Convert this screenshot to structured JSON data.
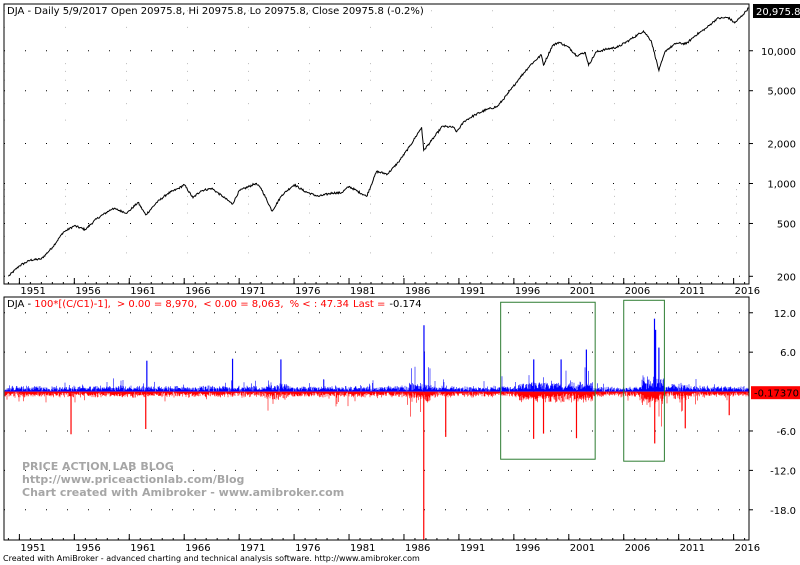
{
  "top_title": "DJA - Daily 5/9/2017 Open 20975.8, Hi 20975.8, Lo 20975.8, Close 20975.8 (-0.2%)",
  "last_price_label": "20,975.8",
  "bottom_title": {
    "prefix": "DJA - ",
    "formula": "100*[(C/C1)-1],",
    "pos_stat": "> 0.00 = 8,970,",
    "neg_stat": "< 0.00 = 8,063,",
    "pct_stat": "% < : 47.34",
    "last_label": "Last =",
    "last_value": "-0.174"
  },
  "last_change_badge": "-0.17370",
  "watermark": [
    "PRICE ACTION LAB BLOG",
    "http://www.priceactionlab.com/Blog",
    "Chart created with Amibroker - www.amibroker.com"
  ],
  "footer": "Created with AmiBroker - advanced charting and technical analysis software. http://www.amibroker.com",
  "colors": {
    "price_line": "#000000",
    "positive_bar": "#0000ff",
    "negative_bar": "#ff0000",
    "box": "#2e7d32",
    "badge_red": "#ff0000",
    "badge_black": "#000000"
  },
  "chart_data": [
    {
      "type": "line",
      "title": "DJA - Daily 5/9/2017 Open 20975.8, Hi 20975.8, Lo 20975.8, Close 20975.8 (-0.2%)",
      "y_scale": "log",
      "xlim": [
        1949.6,
        2017.4
      ],
      "ylim": [
        175,
        22500
      ],
      "x_tick_labels": [
        "1951",
        "1956",
        "1961",
        "1966",
        "1971",
        "1976",
        "1981",
        "1986",
        "1991",
        "1996",
        "2001",
        "2006",
        "2011",
        "2016"
      ],
      "y_tick_labels": [
        "200",
        "500",
        "1,000",
        "2,000",
        "5,000",
        "10,000"
      ],
      "y_tick_values": [
        200,
        500,
        1000,
        2000,
        5000,
        10000
      ],
      "grid": true,
      "x": [
        1950.0,
        1951.0,
        1952.0,
        1953.0,
        1954.0,
        1955.0,
        1956.0,
        1957.0,
        1958.0,
        1959.5,
        1960.8,
        1961.8,
        1962.5,
        1963.5,
        1964.5,
        1965.5,
        1966.0,
        1966.8,
        1967.5,
        1968.5,
        1969.5,
        1970.4,
        1971.0,
        1972.5,
        1973.0,
        1974.0,
        1974.9,
        1976.0,
        1977.0,
        1978.2,
        1979.5,
        1980.3,
        1981.0,
        1982.6,
        1983.5,
        1984.5,
        1985.5,
        1986.5,
        1987.6,
        1987.8,
        1988.5,
        1989.5,
        1990.5,
        1990.8,
        1991.5,
        1992.5,
        1993.5,
        1994.5,
        1995.5,
        1996.5,
        1997.5,
        1998.5,
        1998.7,
        1999.5,
        2000.1,
        2001.0,
        2001.7,
        2002.5,
        2002.8,
        2003.5,
        2004.5,
        2005.5,
        2006.5,
        2007.8,
        2008.5,
        2009.2,
        2009.8,
        2010.8,
        2011.7,
        2012.5,
        2013.5,
        2014.5,
        2015.5,
        2016.1,
        2016.8,
        2017.35
      ],
      "values": [
        200,
        240,
        265,
        270,
        330,
        430,
        480,
        450,
        540,
        650,
        600,
        720,
        580,
        720,
        840,
        920,
        980,
        780,
        880,
        920,
        800,
        700,
        880,
        1000,
        920,
        620,
        820,
        980,
        870,
        800,
        850,
        850,
        950,
        800,
        1230,
        1180,
        1450,
        1890,
        2650,
        1780,
        2100,
        2700,
        2650,
        2450,
        2950,
        3300,
        3600,
        3800,
        4800,
        6200,
        7800,
        9300,
        7800,
        10900,
        11600,
        10600,
        9200,
        9700,
        7800,
        9800,
        10300,
        10700,
        12000,
        14100,
        11900,
        7100,
        10000,
        11400,
        11300,
        13000,
        14800,
        17500,
        17800,
        16200,
        18500,
        20975.8
      ]
    },
    {
      "type": "bar",
      "title": "DJA - 100*[(C/C1)-1], > 0.00 = 8,970, < 0.00 = 8,063, % < : 47.34 Last = -0.174",
      "xlim": [
        1949.6,
        2017.4
      ],
      "ylim": [
        -22.6,
        14.4
      ],
      "x_tick_labels": [
        "1951",
        "1956",
        "1961",
        "1966",
        "1971",
        "1976",
        "1981",
        "1986",
        "1991",
        "1996",
        "2001",
        "2006",
        "2011",
        "2016"
      ],
      "y_tick_labels": [
        "12.0",
        "6.0",
        "-6.0",
        "-12.0",
        "-18.0"
      ],
      "y_tick_values": [
        12,
        6,
        -6,
        -12,
        -18
      ],
      "grid": true,
      "positive_count": 8970,
      "negative_count": 8063,
      "pct_negative": 47.34,
      "last_value": -0.174,
      "typical_range": [
        -1.5,
        1.5
      ],
      "notable_spikes": [
        {
          "x": 1955.7,
          "value": -6.5
        },
        {
          "x": 1962.5,
          "value": -5.7
        },
        {
          "x": 1962.6,
          "value": 4.7
        },
        {
          "x": 1970.4,
          "value": 5.0
        },
        {
          "x": 1974.8,
          "value": 4.9
        },
        {
          "x": 1987.8,
          "value": -22.6
        },
        {
          "x": 1987.82,
          "value": 10.1
        },
        {
          "x": 1987.85,
          "value": 5.9
        },
        {
          "x": 1989.8,
          "value": -6.9
        },
        {
          "x": 1997.8,
          "value": -7.2
        },
        {
          "x": 1997.81,
          "value": 4.9
        },
        {
          "x": 1998.7,
          "value": -6.4
        },
        {
          "x": 2000.3,
          "value": 4.9
        },
        {
          "x": 2001.7,
          "value": -7.1
        },
        {
          "x": 2002.6,
          "value": 6.4
        },
        {
          "x": 2008.8,
          "value": 11.1
        },
        {
          "x": 2008.82,
          "value": -7.9
        },
        {
          "x": 2008.9,
          "value": 9.4
        },
        {
          "x": 2009.2,
          "value": 6.7
        },
        {
          "x": 2011.6,
          "value": -5.6
        },
        {
          "x": 2015.6,
          "value": -3.6
        }
      ],
      "boxes": [
        {
          "x": [
            1994.8,
            2003.4
          ],
          "y": [
            -10.3,
            13.6
          ]
        },
        {
          "x": [
            2006.0,
            2009.7
          ],
          "y": [
            -10.6,
            13.9
          ]
        }
      ]
    }
  ]
}
